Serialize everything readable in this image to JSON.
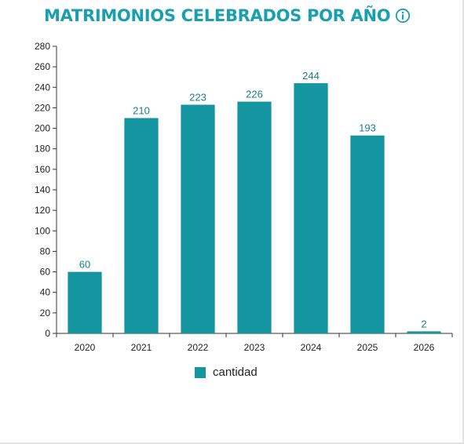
{
  "title": "MATRIMONIOS CELEBRADOS POR AÑO",
  "info_icon": "info-circle-icon",
  "colors": {
    "accent": "#1a9fb0",
    "bar": "#14959f",
    "label": "#1a7f8c"
  },
  "chart_data": {
    "type": "bar",
    "categories": [
      "2020",
      "2021",
      "2022",
      "2023",
      "2024",
      "2025",
      "2026"
    ],
    "series": [
      {
        "name": "cantidad",
        "values": [
          60,
          210,
          223,
          226,
          244,
          193,
          2
        ]
      }
    ],
    "title": "MATRIMONIOS CELEBRADOS POR AÑO",
    "xlabel": "",
    "ylabel": "",
    "ylim": [
      0,
      280
    ],
    "yticks": [
      0,
      20,
      40,
      60,
      80,
      100,
      120,
      140,
      160,
      180,
      200,
      220,
      240,
      260,
      280
    ],
    "grid": false,
    "legend": "bottom"
  }
}
